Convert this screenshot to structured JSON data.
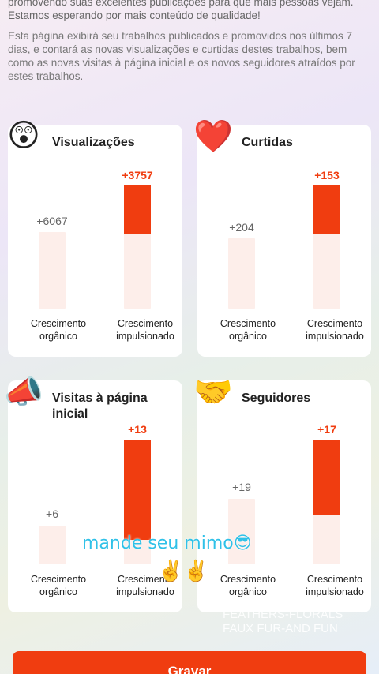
{
  "intro": {
    "line1": "promovendo suas excelentes publicações para que mais pessoas vejam. Estamos esperando por mais conteúdo de qualidade!",
    "line2": "Esta página exibirá seu trabalhos publicados e promovidos nos últimos 7 dias, e contará as novas visualizações e curtidas destes trabalhos, bem como as novas visitas à página inicial e os novos seguidores atraídos por estes trabalhos."
  },
  "labels": {
    "organic": "Crescimento orgânico",
    "boosted": "Crescimento impulsionado"
  },
  "cards": [
    {
      "title": "Visualizações",
      "icon": "astonished-face-icon",
      "organic": "+6067",
      "boosted": "+3757",
      "boosted_fill": 0.4
    },
    {
      "title": "Curtidas",
      "icon": "heart-icon",
      "organic": "+204",
      "boosted": "+153",
      "boosted_fill": 0.4
    },
    {
      "title": "Visitas à página inicial",
      "icon": "megaphone-icon",
      "organic": "+6",
      "boosted": "+13",
      "boosted_fill": 0.8
    },
    {
      "title": "Seguidores",
      "icon": "handshake-icon",
      "organic": "+19",
      "boosted": "+17",
      "boosted_fill": 0.6
    }
  ],
  "overlay": {
    "caption": "mande seu mimo😎",
    "emoji": "✌️✌️"
  },
  "watermark": {
    "line1": "FEATHERS-FLORALS",
    "line2": "FAUX FUR-AND FUN"
  },
  "record_button": "Gravar",
  "colors": {
    "accent": "#f03d10",
    "track": "#fdeeea"
  }
}
